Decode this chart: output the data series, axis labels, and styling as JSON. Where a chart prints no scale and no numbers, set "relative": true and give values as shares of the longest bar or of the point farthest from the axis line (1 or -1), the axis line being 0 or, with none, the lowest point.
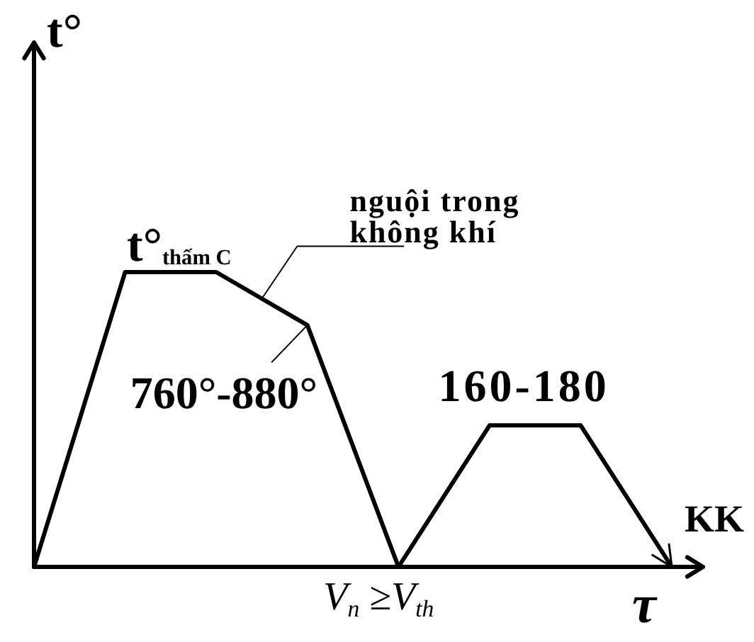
{
  "chart_data": {
    "type": "line",
    "relative": true,
    "tick_labels": false,
    "categories": [
      null,
      null,
      null,
      null,
      null,
      null,
      null,
      null
    ],
    "values": [
      0,
      1,
      1,
      0.82,
      0,
      0.48,
      0.48,
      0
    ],
    "color": "#000000",
    "xlabel": "τ",
    "ylabel": "t°",
    "annotations": [
      "t°$_{thấm C}$",
      "nguội trong không khí",
      "760°-880°",
      "160-180",
      "KK",
      "V$_{n}$ ≥V$_{th}$"
    ]
  }
}
